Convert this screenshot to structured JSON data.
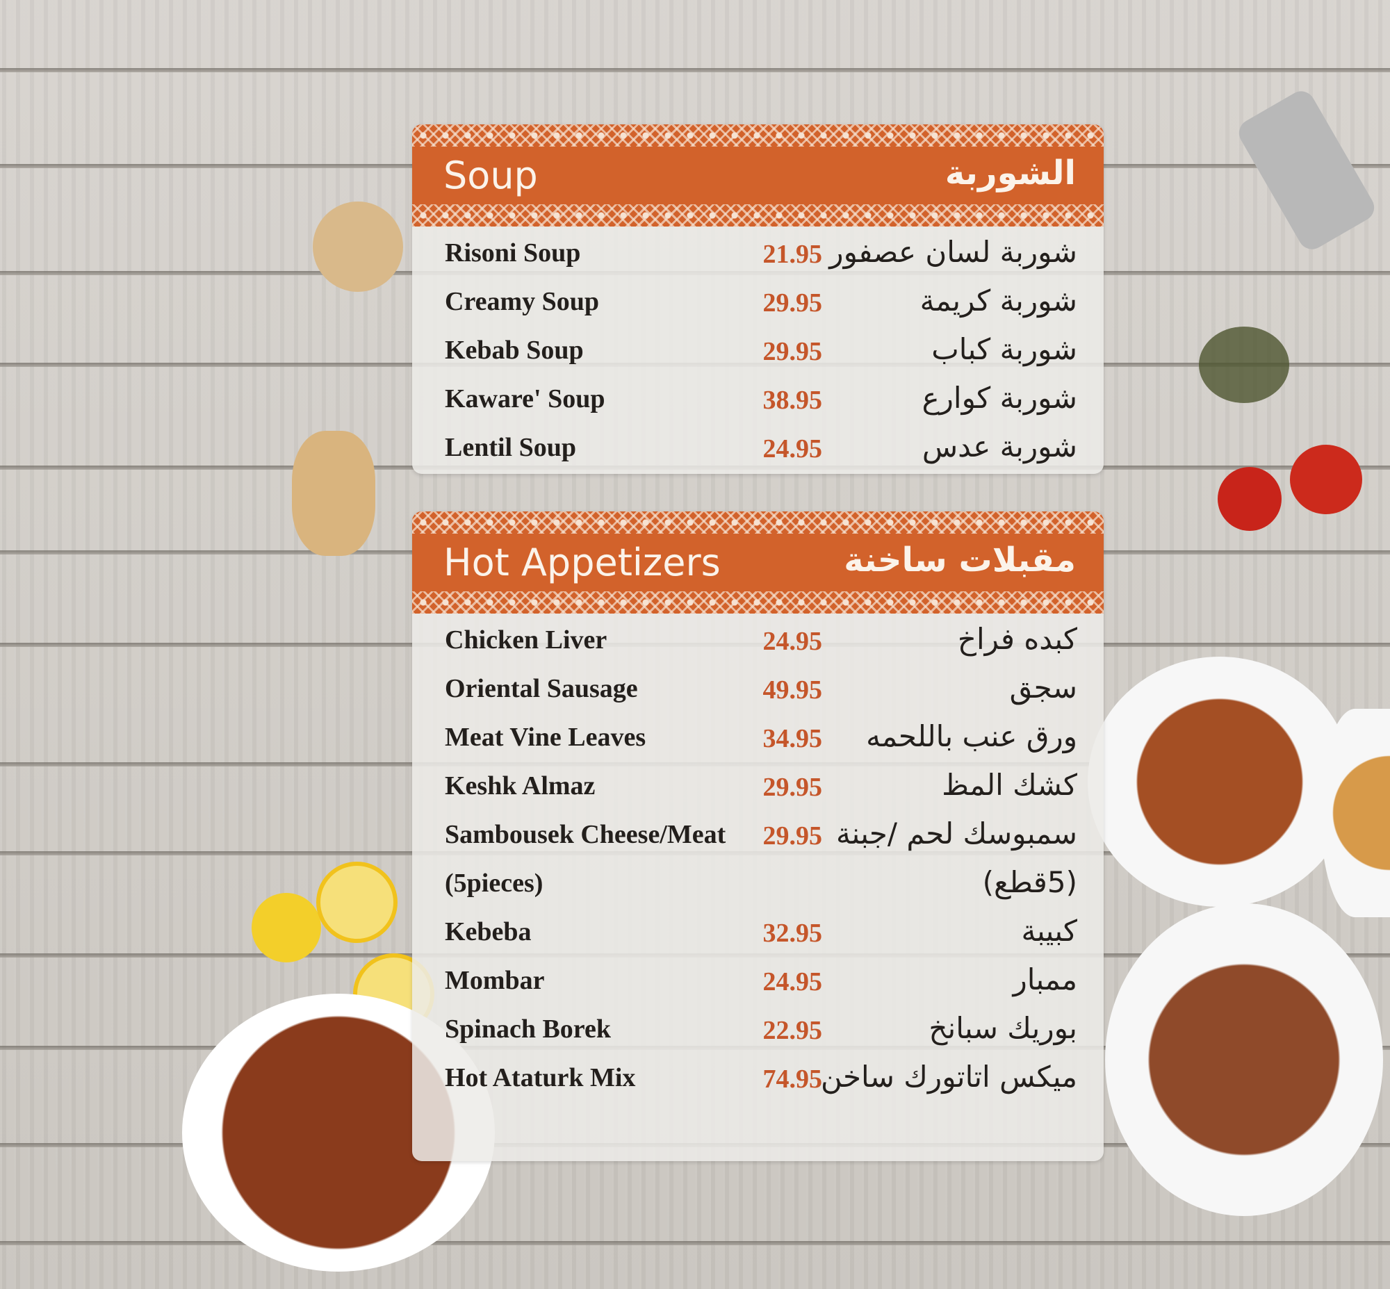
{
  "sections": [
    {
      "title_en": "Soup",
      "title_ar": "الشوربة",
      "items": [
        {
          "en": "Risoni Soup",
          "price": "21.95",
          "ar": "شوربة لسان عصفور"
        },
        {
          "en": "Creamy Soup",
          "price": "29.95",
          "ar": "شوربة كريمة"
        },
        {
          "en": "Kebab Soup",
          "price": "29.95",
          "ar": "شوربة كباب"
        },
        {
          "en": "Kaware' Soup",
          "price": "38.95",
          "ar": "شوربة كوارع"
        },
        {
          "en": "Lentil Soup",
          "price": "24.95",
          "ar": "شوربة عدس"
        }
      ]
    },
    {
      "title_en": "Hot Appetizers",
      "title_ar": "مقبلات ساخنة",
      "items": [
        {
          "en": "Chicken Liver",
          "price": "24.95",
          "ar": "كبده فراخ"
        },
        {
          "en": "Oriental Sausage",
          "price": "49.95",
          "ar": "سجق"
        },
        {
          "en": "Meat Vine Leaves",
          "price": "34.95",
          "ar": "ورق عنب باللحمه"
        },
        {
          "en": "Keshk Almaz",
          "price": "29.95",
          "ar": "كشك المظ"
        },
        {
          "en": "Sambousek Cheese/Meat",
          "price": "29.95",
          "ar": "سمبوسك لحم /جبنة"
        },
        {
          "en": "(5pieces)",
          "price": "",
          "ar": "(5قطع)"
        },
        {
          "en": "Kebeba",
          "price": "32.95",
          "ar": "كبيبة"
        },
        {
          "en": "Mombar",
          "price": "24.95",
          "ar": "ممبار"
        },
        {
          "en": "Spinach Borek",
          "price": "22.95",
          "ar": "بوريك سبانخ"
        },
        {
          "en": "Hot Ataturk Mix",
          "price": "74.95",
          "ar": "ميكس اتاتورك ساخن"
        }
      ]
    }
  ],
  "colors": {
    "accent": "#d2622b",
    "price": "#c5562a"
  }
}
